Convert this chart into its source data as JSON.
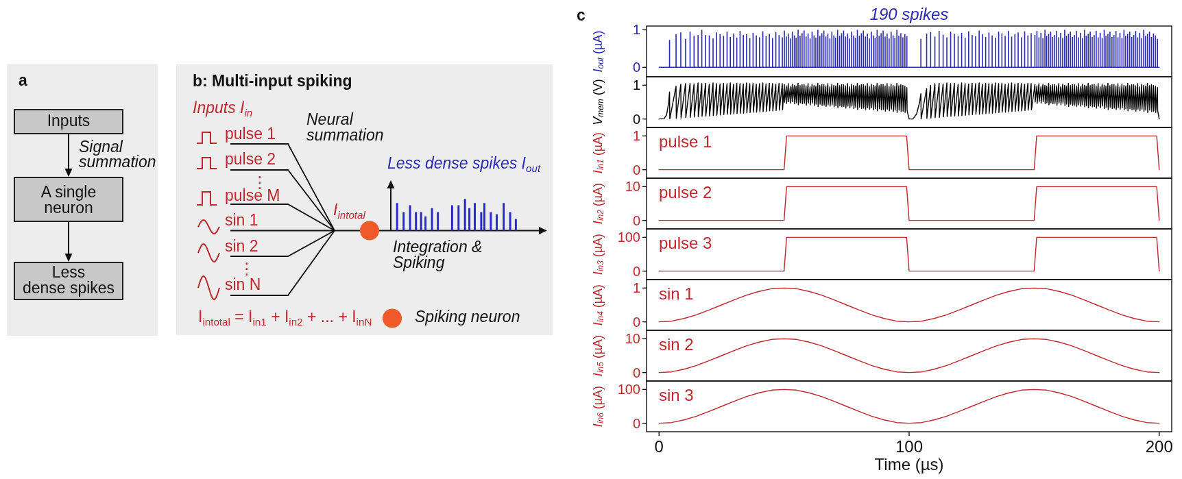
{
  "chart_data": [
    {
      "type": "other",
      "title": "a",
      "annotations": [
        "Inputs",
        "Signal summation",
        "A single neuron",
        "Less dense spikes"
      ]
    },
    {
      "type": "other",
      "title": "b: Multi-input spiking",
      "annotations": [
        "Inputs I$_{in}$",
        "Neural summation",
        "pulse 1",
        "pulse 2",
        "⋮",
        "pulse M",
        "sin 1",
        "sin 2",
        "⋮",
        "sin N",
        "I$_{intotal}$",
        "Less dense spikes I$_{out}$",
        "Integration & Spiking",
        "I$_{intotal}$ = I$_{in1}$ + I$_{in2}$ + ... + I$_{inN}$",
        "Spiking neuron"
      ]
    },
    {
      "type": "other",
      "title": "c"
    },
    {
      "type": "bar",
      "title": "190 spikes",
      "ylabel": "I$_{out}$ (µA)",
      "xlim": [
        -5,
        205
      ],
      "ylim": [
        -0.25,
        1.1
      ],
      "yticks": [
        0,
        1
      ],
      "tick_labels": "y",
      "series": [
        {
          "color": "#2a2ab4",
          "x": [
            4.2,
            6.8,
            8.7,
            10.6,
            12.4,
            14,
            15.6,
            17.1,
            18.6,
            20.1,
            21.6,
            23,
            24.4,
            25.8,
            27.2,
            28.5,
            29.8,
            31.1,
            32.4,
            33.7,
            35,
            36.3,
            37.6,
            38.9,
            40.2,
            41.5,
            42.8,
            44.1,
            45.4,
            46.7,
            48,
            49.3,
            50.1,
            50.9,
            51.7,
            52.5,
            53.3,
            54.1,
            54.8,
            55.6,
            56.4,
            57.2,
            58,
            58.8,
            59.6,
            60.4,
            61.2,
            62,
            62.7,
            63.5,
            64.3,
            65.1,
            65.9,
            66.7,
            67.5,
            68.3,
            69.1,
            69.9,
            70.6,
            71.4,
            72.2,
            73,
            73.8,
            74.6,
            75.4,
            76.2,
            77,
            77.8,
            78.5,
            79.3,
            80.1,
            80.9,
            81.7,
            82.5,
            83.3,
            84.1,
            84.9,
            85.7,
            86.4,
            87.2,
            88,
            88.8,
            89.6,
            90.4,
            91.2,
            92,
            92.8,
            93.6,
            94.3,
            95.1,
            95.9,
            96.7,
            97.5,
            98.3,
            99.1,
            104.7,
            107,
            108.6,
            110.3,
            112,
            113.6,
            115.1,
            116.6,
            118.1,
            119.6,
            121,
            122.4,
            123.8,
            125.2,
            126.6,
            128,
            129.3,
            130.6,
            131.9,
            133.2,
            134.5,
            135.8,
            137.1,
            138.4,
            139.7,
            141,
            142.3,
            143.6,
            144.9,
            146.2,
            147.5,
            148.8,
            150.3,
            151.1,
            151.9,
            152.7,
            153.5,
            154.3,
            155,
            155.8,
            156.6,
            157.4,
            158.2,
            159,
            159.8,
            160.6,
            161.4,
            162.2,
            162.9,
            163.7,
            164.5,
            165.3,
            166.1,
            166.9,
            167.7,
            168.5,
            169.3,
            170.1,
            170.8,
            171.6,
            172.4,
            173.2,
            174,
            174.8,
            175.6,
            176.4,
            177.2,
            178,
            178.7,
            179.5,
            180.3,
            181.1,
            181.9,
            182.7,
            183.5,
            184.3,
            185.1,
            185.9,
            186.6,
            187.4,
            188.2,
            189,
            189.8,
            190.6,
            191.4,
            192.2,
            193,
            193.8,
            194.5,
            195.3,
            196.1,
            196.9,
            197.7,
            198.5,
            199.3
          ],
          "values": [
            0.73,
            0.88,
            0.93,
            0.76,
            0.95,
            0.84,
            0.86,
            1,
            0.86,
            0.85,
            0.77,
            0.93,
            0.88,
            0.84,
            0.95,
            0.81,
            0.9,
            0.79,
            0.97,
            0.86,
            0.88,
            0.78,
            0.92,
            0.85,
            0.8,
            0.96,
            0.83,
            0.89,
            0.78,
            0.94,
            0.86,
            0.8,
            0.98,
            0.82,
            0.9,
            0.77,
            0.95,
            0.85,
            0.79,
            1,
            0.84,
            0.91,
            0.98,
            0.82,
            0.9,
            0.77,
            0.95,
            0.85,
            0.79,
            1,
            0.84,
            0.91,
            0.98,
            0.82,
            0.9,
            0.77,
            0.95,
            0.85,
            0.79,
            1,
            0.84,
            0.91,
            0.98,
            0.82,
            0.9,
            0.77,
            0.95,
            0.85,
            0.79,
            1,
            0.84,
            0.91,
            0.98,
            0.82,
            0.9,
            0.77,
            0.95,
            0.85,
            0.79,
            1,
            0.84,
            0.91,
            0.98,
            0.82,
            0.9,
            0.77,
            0.95,
            0.85,
            0.79,
            1,
            0.84,
            0.91,
            0.8,
            0.88,
            0.83,
            0.76,
            0.9,
            0.94,
            0.82,
            0.97,
            0.87,
            0.8,
            0.95,
            0.89,
            0.84,
            0.92,
            0.79,
            0.96,
            0.86,
            0.83,
            0.98,
            0.88,
            0.81,
            0.93,
            0.85,
            0.79,
            0.95,
            0.9,
            0.84,
            0.97,
            0.82,
            0.88,
            0.93,
            0.8,
            0.96,
            0.85,
            0.91,
            0.86,
            0.97,
            0.8,
            0.92,
            0.78,
            1,
            0.84,
            0.89,
            0.95,
            0.81,
            0.86,
            0.97,
            0.8,
            0.92,
            0.78,
            1,
            0.84,
            0.89,
            0.95,
            0.81,
            0.86,
            0.97,
            0.8,
            0.92,
            0.78,
            1,
            0.84,
            0.89,
            0.95,
            0.81,
            0.86,
            0.97,
            0.8,
            0.92,
            0.78,
            1,
            0.84,
            0.89,
            0.95,
            0.81,
            0.86,
            0.97,
            0.8,
            0.92,
            0.78,
            1,
            0.84,
            0.89,
            0.95,
            0.81,
            0.86,
            0.97,
            0.8,
            0.92,
            0.78,
            1,
            0.84,
            0.89,
            0.95,
            0.81,
            0.9,
            0.85,
            0.76
          ]
        },
        {
          "type": "line",
          "color": "#2a2ab4",
          "x": [
            0,
            200
          ],
          "values": [
            0,
            0
          ]
        }
      ]
    },
    {
      "type": "line",
      "ylabel": "V$_{mem}$ (V)",
      "xlim": [
        -5,
        205
      ],
      "ylim": [
        -0.25,
        1.25
      ],
      "yticks": [
        0,
        1
      ],
      "tick_labels": "y",
      "series": [
        {
          "color": "#000000",
          "x": [
            0,
            2,
            3,
            3.8,
            4.2,
            4.3,
            6.8,
            6.9,
            8.7,
            8.8,
            10.6,
            10.7,
            12.4,
            12.5,
            14,
            14.1,
            15.6,
            15.7,
            17.1,
            17.2,
            18.6,
            18.7,
            20.1,
            20.2,
            21.6,
            21.7,
            23,
            23.1,
            24.4,
            24.5,
            25.8,
            25.9,
            27.2,
            27.3,
            28.5,
            28.6,
            29.8,
            29.9,
            31.1,
            31.2,
            32.4,
            32.5,
            33.7,
            33.8,
            35,
            35.1,
            36.3,
            36.4,
            37.6,
            37.7,
            38.9,
            39,
            40.2,
            40.3,
            41.5,
            41.6,
            42.8,
            42.9,
            44.1,
            44.2,
            45.4,
            45.5,
            46.7,
            46.8,
            48,
            48.1,
            49.3,
            49.4,
            50.1,
            50.2,
            50.9,
            51,
            51.7,
            51.8,
            52.5,
            52.6,
            53.3,
            53.4,
            54.1,
            54.2,
            54.8,
            54.9,
            55.6,
            55.7,
            56.4,
            56.5,
            57.2,
            57.3,
            58,
            58.1,
            58.8,
            58.9,
            59.6,
            59.7,
            60.4,
            60.5,
            61.2,
            61.3,
            62,
            62.1,
            62.7,
            62.8,
            63.5,
            63.6,
            64.3,
            64.4,
            65.1,
            65.2,
            65.9,
            66,
            66.7,
            66.8,
            67.5,
            67.6,
            68.3,
            68.4,
            69.1,
            69.2,
            69.9,
            70,
            70.6,
            70.7,
            71.4,
            71.5,
            72.2,
            72.3,
            73,
            73.1,
            73.8,
            73.9,
            74.6,
            74.7,
            75.4,
            75.5,
            76.2,
            76.3,
            77,
            77.1,
            77.8,
            77.9,
            78.5,
            78.6,
            79.3,
            79.4,
            80.1,
            80.2,
            80.9,
            81,
            81.7,
            81.8,
            82.5,
            82.6,
            83.3,
            83.4,
            84.1,
            84.2,
            84.9,
            85,
            85.7,
            85.8,
            86.4,
            86.5,
            87.2,
            87.3,
            88,
            88.1,
            88.8,
            88.9,
            89.6,
            89.7,
            90.4,
            90.5,
            91.2,
            91.3,
            92,
            92.1,
            92.8,
            92.9,
            93.6,
            93.7,
            94.3,
            94.4,
            95.1,
            95.2,
            95.9,
            96,
            96.7,
            96.8,
            97.5,
            97.6,
            98.3,
            98.4,
            99.1,
            99.2,
            100,
            101.5,
            103,
            104.2,
            104.7,
            104.8,
            107,
            107.1,
            108.6,
            108.7,
            110.3,
            110.4,
            112,
            112.1,
            113.6,
            113.7,
            115.1,
            115.2,
            116.6,
            116.7,
            118.1,
            118.2,
            119.6,
            119.7,
            121,
            121.1,
            122.4,
            122.5,
            123.8,
            123.9,
            125.2,
            125.3,
            126.6,
            126.7,
            128,
            128.1,
            129.3,
            129.4,
            130.6,
            130.7,
            131.9,
            132,
            133.2,
            133.3,
            134.5,
            134.6,
            135.8,
            135.9,
            137.1,
            137.2,
            138.4,
            138.5,
            139.7,
            139.8,
            141,
            141.1,
            142.3,
            142.4,
            143.6,
            143.7,
            144.9,
            145,
            146.2,
            146.3,
            147.5,
            147.6,
            148.8,
            148.9,
            150.3,
            150.4,
            151.1,
            151.2,
            151.9,
            152,
            152.7,
            152.8,
            153.5,
            153.6,
            154.3,
            154.4,
            155,
            155.1,
            155.8,
            155.9,
            156.6,
            156.7,
            157.4,
            157.5,
            158.2,
            158.3,
            159,
            159.1,
            159.8,
            159.9,
            160.6,
            160.7,
            161.4,
            161.5,
            162.2,
            162.3,
            162.9,
            163,
            163.7,
            163.8,
            164.5,
            164.6,
            165.3,
            165.4,
            166.1,
            166.2,
            166.9,
            167,
            167.7,
            167.8,
            168.5,
            168.6,
            169.3,
            169.4,
            170.1,
            170.2,
            170.8,
            170.9,
            171.6,
            171.7,
            172.4,
            172.5,
            173.2,
            173.3,
            174,
            174.1,
            174.8,
            174.9,
            175.6,
            175.7,
            176.4,
            176.5,
            177.2,
            177.3,
            178,
            178.1,
            178.7,
            178.8,
            179.5,
            179.6,
            180.3,
            180.4,
            181.1,
            181.2,
            181.9,
            182,
            182.7,
            182.8,
            183.5,
            183.6,
            184.3,
            184.4,
            185.1,
            185.2,
            185.9,
            186,
            186.6,
            186.7,
            187.4,
            187.5,
            188.2,
            188.3,
            189,
            189.1,
            189.8,
            189.9,
            190.6,
            190.7,
            191.4,
            191.5,
            192.2,
            192.3,
            193,
            193.1,
            193.8,
            193.9,
            194.5,
            194.6,
            195.3,
            195.4,
            196.1,
            196.2,
            196.9,
            197,
            197.7,
            197.8,
            198.5,
            198.6,
            199.3,
            199.4,
            200
          ],
          "values": [
            0,
            0.01,
            0.12,
            0.45,
            0.8,
            0,
            0.97,
            0.02,
            1.03,
            0.03,
            1.05,
            0.04,
            1.06,
            0.05,
            1.04,
            0.06,
            1.07,
            0.07,
            1.05,
            0.08,
            1.06,
            0.09,
            1.03,
            0.09,
            1.07,
            0.1,
            1.05,
            0.11,
            1.04,
            0.12,
            1.06,
            0.13,
            1.05,
            0.14,
            1.07,
            0.14,
            1.03,
            0.15,
            1.06,
            0.16,
            1.05,
            0.17,
            1.04,
            0.17,
            1.07,
            0.18,
            1.05,
            0.19,
            1.06,
            0.2,
            1.03,
            0.2,
            1.05,
            0.21,
            1.07,
            0.22,
            1.04,
            0.23,
            1.06,
            0.24,
            1.05,
            0.24,
            1.03,
            0.25,
            1.06,
            0.26,
            1.05,
            0.27,
            1.02,
            0.5,
            0.98,
            0.46,
            1.05,
            0.51,
            0.95,
            0.47,
            1.03,
            0.51,
            1,
            0.45,
            0.97,
            0.48,
            1.06,
            0.42,
            0.99,
            0.48,
            1.02,
            0.45,
            1.02,
            0.46,
            0.98,
            0.41,
            1.05,
            0.47,
            0.95,
            0.42,
            1.03,
            0.47,
            1,
            0.4,
            0.97,
            0.44,
            1.06,
            0.37,
            0.99,
            0.44,
            1.02,
            0.4,
            1.02,
            0.41,
            0.98,
            0.37,
            1.05,
            0.42,
            0.95,
            0.38,
            1.03,
            0.42,
            1,
            0.36,
            0.97,
            0.39,
            1.06,
            0.33,
            0.99,
            0.39,
            1.02,
            0.36,
            1.02,
            0.37,
            0.98,
            0.32,
            1.05,
            0.38,
            0.95,
            0.33,
            1.03,
            0.38,
            1,
            0.31,
            0.97,
            0.35,
            1.06,
            0.28,
            0.99,
            0.35,
            1.02,
            0.31,
            1.02,
            0.32,
            0.98,
            0.28,
            1.05,
            0.33,
            0.95,
            0.29,
            1.03,
            0.33,
            1,
            0.27,
            0.97,
            0.3,
            1.06,
            0.24,
            0.99,
            0.3,
            1.02,
            0.27,
            1.02,
            0.28,
            0.98,
            0.23,
            1.05,
            0.29,
            0.95,
            0.24,
            1.03,
            0.29,
            1,
            0.22,
            0.97,
            0.26,
            1.06,
            0.19,
            0.99,
            0.26,
            1.02,
            0.22,
            1,
            0.23,
            0.97,
            0.19,
            0.93,
            0.24,
            0,
            0,
            0.15,
            0.5,
            0.75,
            0,
            0.9,
            0.02,
            1,
            0.03,
            1.05,
            0.04,
            1.06,
            0.05,
            1.04,
            0.06,
            1.07,
            0.07,
            1.05,
            0.08,
            1.06,
            0.09,
            1.03,
            0.09,
            1.07,
            0.1,
            1.05,
            0.11,
            1.04,
            0.12,
            1.06,
            0.13,
            1.05,
            0.14,
            1.07,
            0.14,
            1.03,
            0.15,
            1.06,
            0.16,
            1.05,
            0.17,
            1.04,
            0.17,
            1.07,
            0.18,
            1.05,
            0.19,
            1.06,
            0.2,
            1.03,
            0.2,
            1.05,
            0.21,
            1.07,
            0.22,
            1.04,
            0.23,
            1.06,
            0.24,
            1.05,
            0.24,
            1.03,
            0.25,
            1.06,
            0.26,
            1.05,
            0.27,
            1.02,
            0.5,
            0.98,
            0.46,
            1.05,
            0.51,
            0.95,
            0.47,
            1.03,
            0.51,
            1,
            0.45,
            0.97,
            0.48,
            1.06,
            0.42,
            0.99,
            0.48,
            1.02,
            0.45,
            1.02,
            0.46,
            0.98,
            0.41,
            1.05,
            0.47,
            0.95,
            0.42,
            1.03,
            0.47,
            1,
            0.4,
            0.97,
            0.44,
            1.06,
            0.37,
            0.99,
            0.44,
            1.02,
            0.4,
            1.02,
            0.41,
            0.98,
            0.37,
            1.05,
            0.42,
            0.95,
            0.38,
            1.03,
            0.42,
            1,
            0.36,
            0.97,
            0.39,
            1.06,
            0.33,
            0.99,
            0.39,
            1.02,
            0.36,
            1.02,
            0.37,
            0.98,
            0.32,
            1.05,
            0.38,
            0.95,
            0.33,
            1.03,
            0.38,
            1,
            0.31,
            0.97,
            0.35,
            1.06,
            0.28,
            0.99,
            0.35,
            1.02,
            0.31,
            1.02,
            0.32,
            0.98,
            0.28,
            1.05,
            0.33,
            0.95,
            0.29,
            1.03,
            0.33,
            1,
            0.27,
            0.97,
            0.3,
            1.06,
            0.24,
            0.99,
            0.3,
            1.02,
            0.27,
            1.02,
            0.28,
            0.98,
            0.23,
            1.05,
            0.29,
            0.95,
            0.24,
            1.03,
            0.29,
            1,
            0.22,
            0.97,
            0.26,
            1.06,
            0.19,
            0.99,
            0.26,
            1.02,
            0.22,
            1,
            0.23,
            0.97,
            0.19,
            0.93,
            0.24,
            0
          ]
        }
      ]
    },
    {
      "type": "line",
      "ylabel": "I$_{in1}$ (µA)",
      "annotations": [
        "pulse 1"
      ],
      "xlim": [
        -5,
        205
      ],
      "ylim": [
        -0.25,
        1.25
      ],
      "yticks": [
        0,
        1
      ],
      "tick_labels": "y",
      "x": [
        0,
        50,
        51,
        99,
        100,
        150,
        151,
        199,
        200
      ],
      "series": [
        {
          "color": "#c1272d",
          "values": [
            0,
            0,
            1,
            1,
            0,
            0,
            1,
            1,
            0
          ]
        }
      ]
    },
    {
      "type": "line",
      "ylabel": "I$_{in2}$ (µA)",
      "annotations": [
        "pulse 2"
      ],
      "xlim": [
        -5,
        205
      ],
      "ylim": [
        -2.5,
        12.5
      ],
      "yticks": [
        0,
        10
      ],
      "tick_labels": "y",
      "x": [
        0,
        50,
        51,
        99,
        100,
        150,
        151,
        199,
        200
      ],
      "series": [
        {
          "color": "#c1272d",
          "values": [
            0,
            0,
            10,
            10,
            0,
            0,
            10,
            10,
            0
          ]
        }
      ]
    },
    {
      "type": "line",
      "ylabel": "I$_{in3}$ (µA)",
      "annotations": [
        "pulse 3"
      ],
      "xlim": [
        -5,
        205
      ],
      "ylim": [
        -25,
        125
      ],
      "yticks": [
        0,
        100
      ],
      "tick_labels": "y",
      "x": [
        0,
        50,
        51,
        99,
        100,
        150,
        151,
        199,
        200
      ],
      "series": [
        {
          "color": "#c1272d",
          "values": [
            0,
            0,
            100,
            100,
            0,
            0,
            100,
            100,
            0
          ]
        }
      ]
    },
    {
      "type": "line",
      "ylabel": "I$_{in4}$ (µA)",
      "annotations": [
        "sin 1"
      ],
      "xlim": [
        -5,
        205
      ],
      "ylim": [
        -0.25,
        1.25
      ],
      "yticks": [
        0,
        1
      ],
      "tick_labels": "y",
      "x": [
        0,
        5,
        10,
        15,
        20,
        25,
        30,
        35,
        40,
        45,
        50,
        55,
        60,
        65,
        70,
        75,
        80,
        85,
        90,
        95,
        100,
        105,
        110,
        115,
        120,
        125,
        130,
        135,
        140,
        145,
        150,
        155,
        160,
        165,
        170,
        175,
        180,
        185,
        190,
        195,
        200
      ],
      "series": [
        {
          "color": "#c1272d",
          "values": [
            0,
            0.02,
            0.1,
            0.21,
            0.35,
            0.5,
            0.65,
            0.79,
            0.9,
            0.98,
            1,
            0.98,
            0.9,
            0.79,
            0.65,
            0.5,
            0.35,
            0.21,
            0.1,
            0.02,
            0,
            0.02,
            0.1,
            0.21,
            0.35,
            0.5,
            0.65,
            0.79,
            0.9,
            0.98,
            1,
            0.98,
            0.9,
            0.79,
            0.65,
            0.5,
            0.35,
            0.21,
            0.1,
            0.02,
            0
          ]
        }
      ]
    },
    {
      "type": "line",
      "ylabel": "I$_{in5}$ (µA)",
      "annotations": [
        "sin 2"
      ],
      "xlim": [
        -5,
        205
      ],
      "ylim": [
        -2.5,
        12.5
      ],
      "yticks": [
        0,
        10
      ],
      "tick_labels": "y",
      "x": [
        0,
        5,
        10,
        15,
        20,
        25,
        30,
        35,
        40,
        45,
        50,
        55,
        60,
        65,
        70,
        75,
        80,
        85,
        90,
        95,
        100,
        105,
        110,
        115,
        120,
        125,
        130,
        135,
        140,
        145,
        150,
        155,
        160,
        165,
        170,
        175,
        180,
        185,
        190,
        195,
        200
      ],
      "series": [
        {
          "color": "#c1272d",
          "values": [
            0,
            0.2,
            1,
            2.1,
            3.5,
            5,
            6.5,
            7.9,
            9,
            9.8,
            10,
            9.8,
            9,
            7.9,
            6.5,
            5,
            3.5,
            2.1,
            1,
            0.2,
            0,
            0.2,
            1,
            2.1,
            3.5,
            5,
            6.5,
            7.9,
            9,
            9.8,
            10,
            9.8,
            9,
            7.9,
            6.5,
            5,
            3.5,
            2.1,
            1,
            0.2,
            0
          ]
        }
      ]
    },
    {
      "type": "line",
      "ylabel": "I$_{in6}$ (µA)",
      "xlabel": "Time (µs)",
      "annotations": [
        "sin 3"
      ],
      "xlim": [
        -5,
        205
      ],
      "ylim": [
        -25,
        125
      ],
      "xticks": [
        0,
        100,
        200
      ],
      "yticks": [
        0,
        100
      ],
      "x": [
        0,
        5,
        10,
        15,
        20,
        25,
        30,
        35,
        40,
        45,
        50,
        55,
        60,
        65,
        70,
        75,
        80,
        85,
        90,
        95,
        100,
        105,
        110,
        115,
        120,
        125,
        130,
        135,
        140,
        145,
        150,
        155,
        160,
        165,
        170,
        175,
        180,
        185,
        190,
        195,
        200
      ],
      "series": [
        {
          "color": "#c1272d",
          "values": [
            0,
            2,
            10,
            21,
            35,
            50,
            65,
            79,
            90,
            98,
            100,
            98,
            90,
            79,
            65,
            50,
            35,
            21,
            10,
            2,
            0,
            2,
            10,
            21,
            35,
            50,
            65,
            79,
            90,
            98,
            100,
            98,
            90,
            79,
            65,
            50,
            35,
            21,
            10,
            2,
            0
          ]
        }
      ]
    }
  ]
}
